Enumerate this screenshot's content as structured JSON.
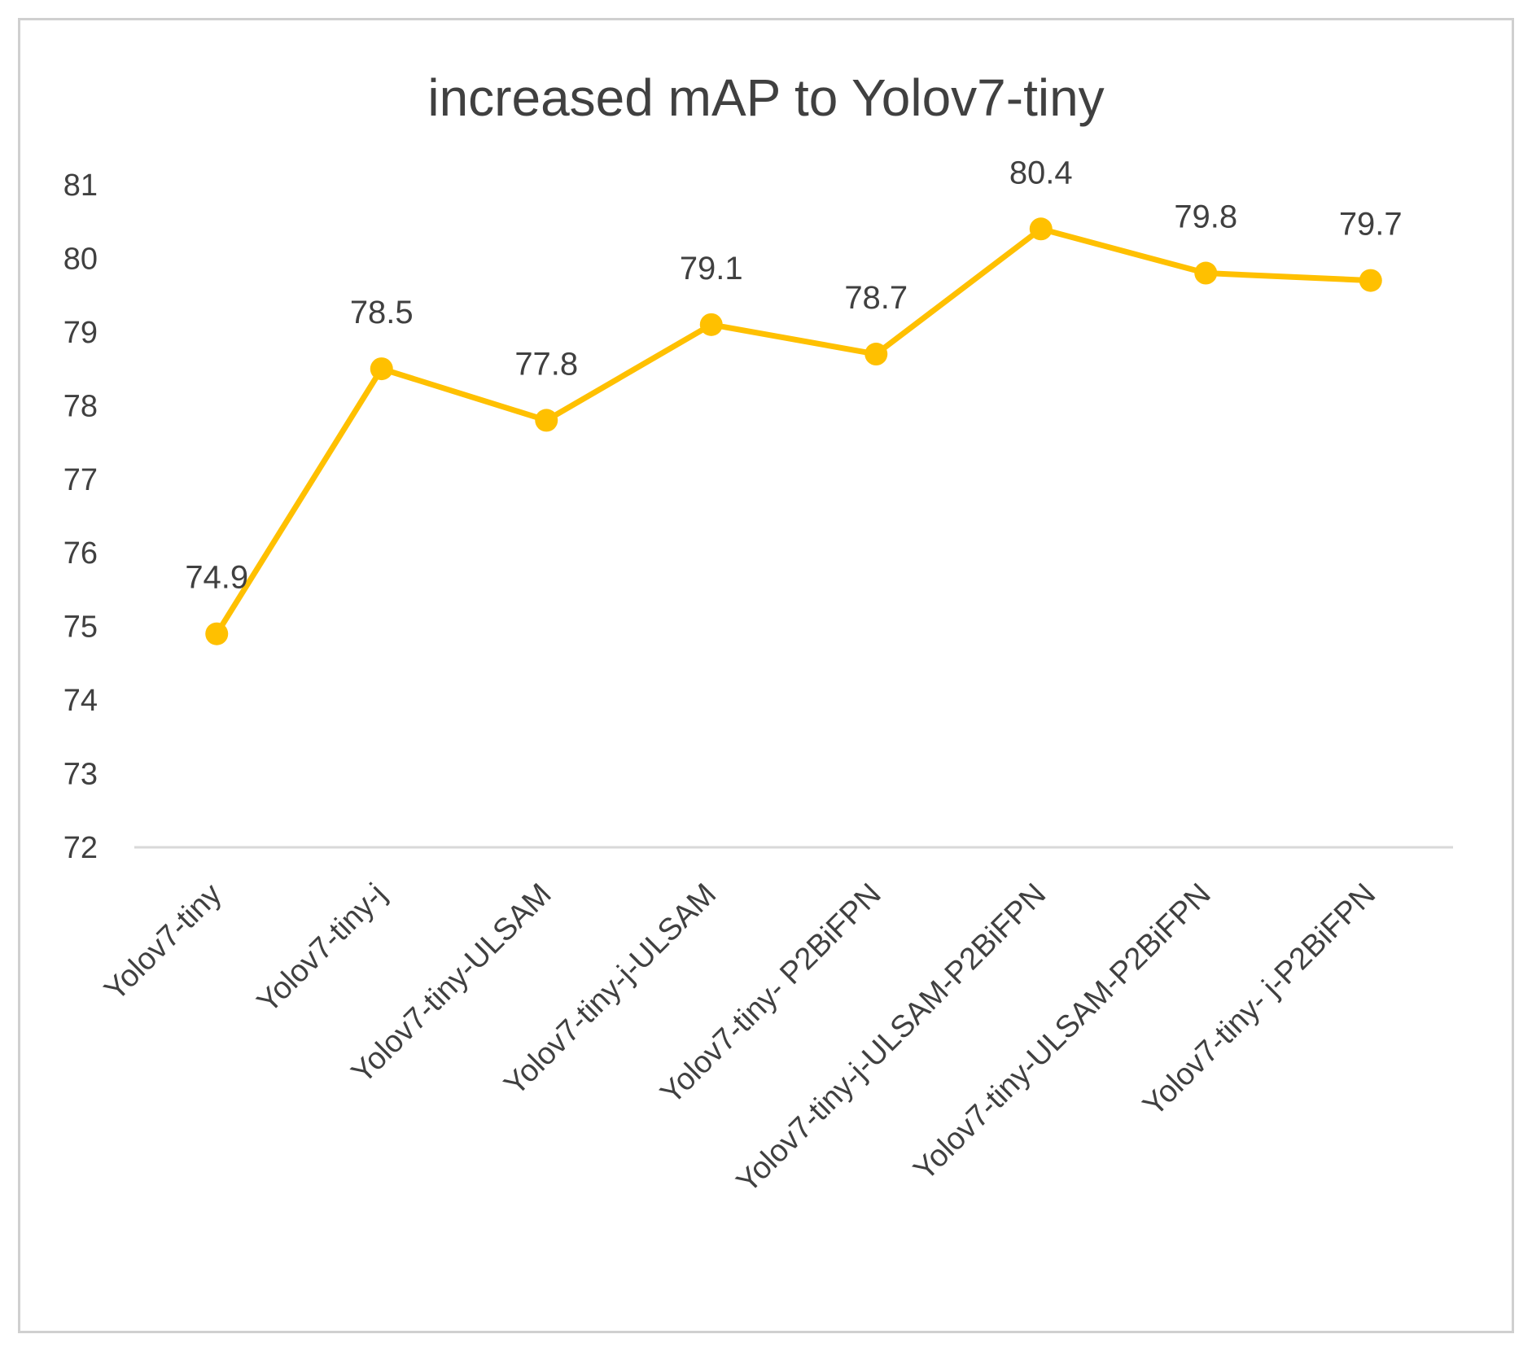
{
  "chart_data": {
    "type": "line",
    "title": "increased mAP to Yolov7-tiny",
    "xlabel": "",
    "ylabel": "",
    "categories": [
      "Yolov7-tiny",
      "Yolov7-tiny-j",
      "Yolov7-tiny-ULSAM",
      "Yolov7-tiny-j-ULSAM",
      "Yolov7-tiny- P2BiFPN",
      "Yolov7-tiny-j-ULSAM-P2BiFPN",
      "Yolov7-tiny-ULSAM-P2BiFPN",
      "Yolov7-tiny- j-P2BiFPN"
    ],
    "series": [
      {
        "name": "mAP",
        "values": [
          74.9,
          78.5,
          77.8,
          79.1,
          78.7,
          80.4,
          79.8,
          79.7
        ],
        "data_labels": [
          "74.9",
          "78.5",
          "77.8",
          "79.1",
          "78.7",
          "80.4",
          "79.8",
          "79.7"
        ]
      }
    ],
    "ylim": [
      72,
      81
    ],
    "yticks": [
      "72",
      "73",
      "74",
      "75",
      "76",
      "77",
      "78",
      "79",
      "80",
      "81"
    ],
    "grid": false,
    "legend": "none",
    "colors": {
      "line": "#FFC000",
      "axis": "#d9d9d9",
      "text": "#404040",
      "border": "#d0d0d0"
    }
  }
}
